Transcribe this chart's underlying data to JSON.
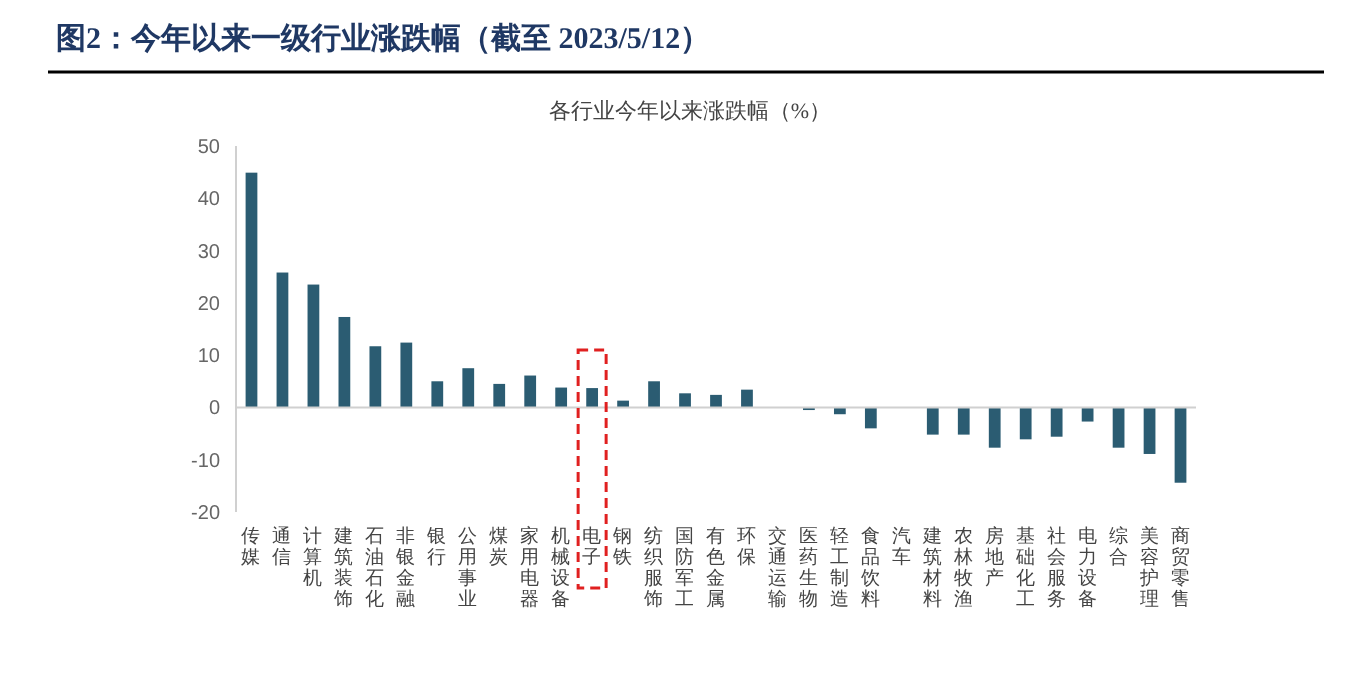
{
  "chart_data": {
    "type": "bar",
    "title": "图2：今年以来一级行业涨跌幅（截至 2023/5/12）",
    "subtitle": "各行业今年以来涨跌幅（%）",
    "categories": [
      "传媒",
      "通信",
      "计算机",
      "建筑装饰",
      "石油石化",
      "非银金融",
      "银行",
      "公用事业",
      "煤炭",
      "家用电器",
      "机械设备",
      "电子",
      "钢铁",
      "纺织服饰",
      "国防军工",
      "有色金属",
      "环保",
      "交通运输",
      "医药生物",
      "轻工制造",
      "食品饮料",
      "汽车",
      "建筑材料",
      "农林牧渔",
      "房地产",
      "基础化工",
      "社会服务",
      "电力设备",
      "综合",
      "美容护理",
      "商贸零售"
    ],
    "values": [
      44.9,
      25.8,
      23.5,
      17.3,
      11.7,
      12.4,
      5.0,
      7.5,
      4.5,
      6.1,
      3.8,
      3.7,
      1.3,
      5.0,
      2.7,
      2.4,
      3.4,
      0,
      -0.5,
      -1.3,
      -4.0,
      0,
      -5.2,
      -5.2,
      -7.7,
      -6.1,
      -5.6,
      -2.7,
      -7.7,
      -8.9,
      -14.4
    ],
    "color": "#2b5c72",
    "ylim": [
      -20,
      50
    ],
    "yticks": [
      -20,
      -10,
      0,
      10,
      20,
      30,
      40,
      50
    ]
  }
}
